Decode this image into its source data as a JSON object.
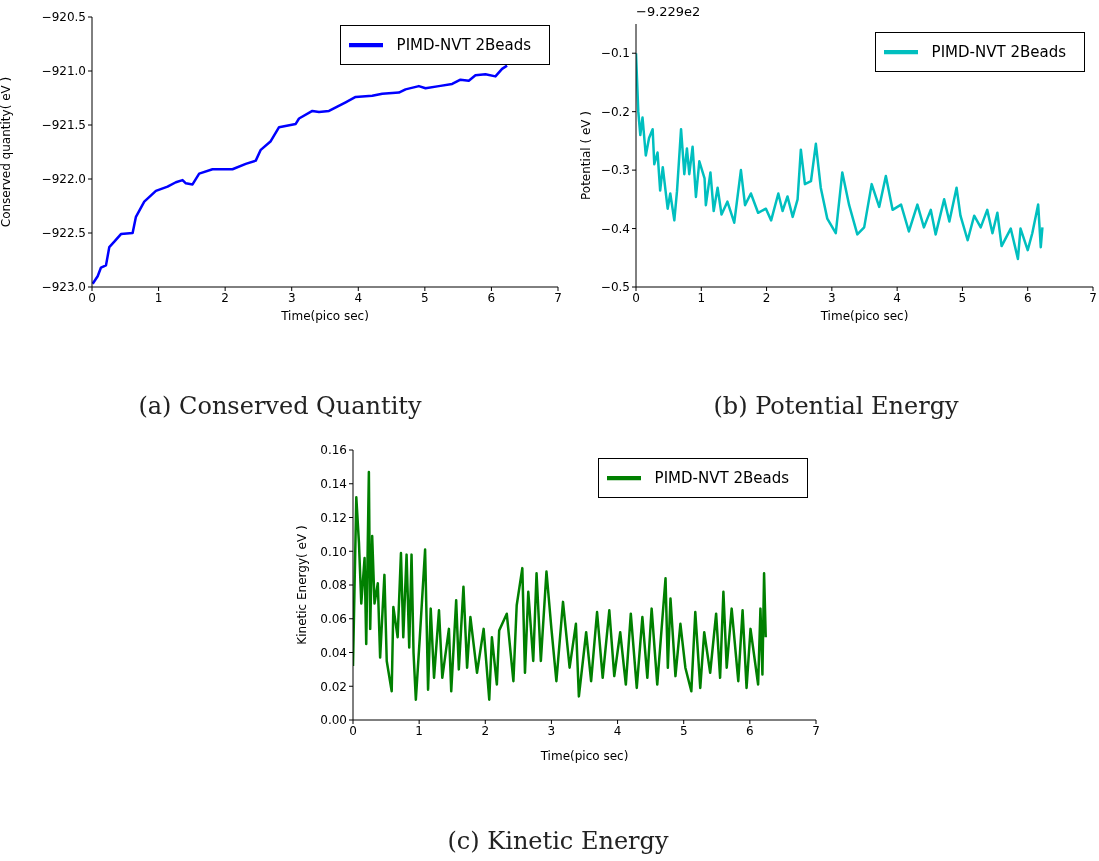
{
  "chart_data": [
    {
      "type": "line",
      "title": "(a) Conserved Quantity",
      "xlabel": "Time(pico sec)",
      "ylabel": "Conserved quantity( eV )",
      "legend": "top right",
      "xlim": [
        0,
        7
      ],
      "xticks": [
        0,
        1,
        2,
        3,
        4,
        5,
        6,
        7
      ],
      "ylim": [
        -923.0,
        -920.5
      ],
      "yticks": [
        {
          "value": -923.0,
          "label": "−923.0"
        },
        {
          "value": -922.5,
          "label": "−922.5"
        },
        {
          "value": -922.0,
          "label": "−922.0"
        },
        {
          "value": -921.5,
          "label": "−921.5"
        },
        {
          "value": -921.0,
          "label": "−921.0"
        },
        {
          "value": -920.5,
          "label": "−920.5"
        }
      ],
      "series": [
        {
          "name": "PIMD-NVT 2Beads",
          "color": "#0000ff",
          "x": [
            0.01,
            0.085,
            0.135,
            0.21,
            0.26,
            0.335,
            0.435,
            0.61,
            0.66,
            0.785,
            0.96,
            1.135,
            1.26,
            1.36,
            1.41,
            1.51,
            1.61,
            1.81,
            2.11,
            2.31,
            2.46,
            2.535,
            2.685,
            2.81,
            3.06,
            3.11,
            3.31,
            3.41,
            3.56,
            3.685,
            3.81,
            3.96,
            4.21,
            4.36,
            4.61,
            4.71,
            4.91,
            5.01,
            5.21,
            5.41,
            5.535,
            5.66,
            5.76,
            5.91,
            6.06,
            6.16,
            6.235
          ],
          "values": [
            -922.97,
            -922.9,
            -922.82,
            -922.8,
            -922.63,
            -922.58,
            -922.51,
            -922.5,
            -922.35,
            -922.21,
            -922.11,
            -922.07,
            -922.03,
            -922.01,
            -922.04,
            -922.05,
            -921.95,
            -921.91,
            -921.91,
            -921.86,
            -921.83,
            -921.73,
            -921.65,
            -921.52,
            -921.49,
            -921.44,
            -921.37,
            -921.38,
            -921.37,
            -921.33,
            -921.29,
            -921.24,
            -921.23,
            -921.21,
            -921.2,
            -921.17,
            -921.14,
            -921.16,
            -921.14,
            -921.12,
            -921.08,
            -921.09,
            -921.04,
            -921.03,
            -921.05,
            -920.98,
            -920.95
          ]
        }
      ]
    },
    {
      "type": "line",
      "title": "(b) Potential Energy",
      "xlabel": "Time(pico sec)",
      "ylabel": "Potential ( eV )",
      "legend": "top right",
      "annotations": [
        "−9.229e2"
      ],
      "xlim": [
        0,
        7
      ],
      "xticks": [
        0,
        1,
        2,
        3,
        4,
        5,
        6,
        7
      ],
      "ylim": [
        -0.5,
        -0.05
      ],
      "yticks": [
        {
          "value": -0.5,
          "label": "−0.5"
        },
        {
          "value": -0.4,
          "label": "−0.4"
        },
        {
          "value": -0.3,
          "label": "−0.3"
        },
        {
          "value": -0.2,
          "label": "−0.2"
        },
        {
          "value": -0.1,
          "label": "−0.1"
        }
      ],
      "series": [
        {
          "name": "PIMD-NVT 2Beads",
          "color": "#00bfbf",
          "x": [
            0,
            0.035,
            0.066,
            0.1,
            0.15,
            0.2,
            0.255,
            0.28,
            0.33,
            0.37,
            0.41,
            0.485,
            0.525,
            0.587,
            0.628,
            0.69,
            0.74,
            0.78,
            0.816,
            0.867,
            0.918,
            0.97,
            1.05,
            1.07,
            1.14,
            1.19,
            1.25,
            1.31,
            1.4,
            1.505,
            1.607,
            1.67,
            1.76,
            1.87,
            1.99,
            2.07,
            2.18,
            2.245,
            2.32,
            2.4,
            2.475,
            2.525,
            2.587,
            2.68,
            2.755,
            2.83,
            2.93,
            3.06,
            3.16,
            3.265,
            3.39,
            3.495,
            3.61,
            3.725,
            3.827,
            3.93,
            4.06,
            4.18,
            4.31,
            4.41,
            4.515,
            4.59,
            4.72,
            4.8,
            4.91,
            4.97,
            5.08,
            5.18,
            5.28,
            5.38,
            5.46,
            5.535,
            5.6,
            5.74,
            5.85,
            5.89,
            6.0,
            6.07,
            6.16,
            6.2,
            6.225
          ],
          "values": [
            -0.1,
            -0.2,
            -0.24,
            -0.21,
            -0.275,
            -0.245,
            -0.23,
            -0.29,
            -0.27,
            -0.335,
            -0.295,
            -0.366,
            -0.34,
            -0.386,
            -0.336,
            -0.23,
            -0.307,
            -0.263,
            -0.307,
            -0.26,
            -0.346,
            -0.285,
            -0.314,
            -0.36,
            -0.304,
            -0.37,
            -0.33,
            -0.376,
            -0.354,
            -0.39,
            -0.3,
            -0.36,
            -0.34,
            -0.373,
            -0.366,
            -0.386,
            -0.34,
            -0.37,
            -0.345,
            -0.38,
            -0.35,
            -0.265,
            -0.324,
            -0.319,
            -0.255,
            -0.33,
            -0.383,
            -0.408,
            -0.304,
            -0.36,
            -0.41,
            -0.398,
            -0.324,
            -0.363,
            -0.31,
            -0.368,
            -0.359,
            -0.405,
            -0.359,
            -0.398,
            -0.368,
            -0.41,
            -0.35,
            -0.388,
            -0.33,
            -0.378,
            -0.42,
            -0.378,
            -0.398,
            -0.368,
            -0.408,
            -0.373,
            -0.43,
            -0.4,
            -0.452,
            -0.4,
            -0.437,
            -0.408,
            -0.359,
            -0.432,
            -0.398
          ]
        }
      ]
    },
    {
      "type": "line",
      "title": "(c) Kinetic Energy",
      "xlabel": "Time(pico sec)",
      "ylabel": "Kinetic Energy( eV )",
      "legend": "top right",
      "xlim": [
        0,
        7
      ],
      "xticks": [
        0,
        1,
        2,
        3,
        4,
        5,
        6,
        7
      ],
      "ylim": [
        0,
        0.16
      ],
      "yticks": [
        {
          "value": 0,
          "label": "0.00"
        },
        {
          "value": 0.02,
          "label": "0.02"
        },
        {
          "value": 0.04,
          "label": "0.04"
        },
        {
          "value": 0.06,
          "label": "0.06"
        },
        {
          "value": 0.08,
          "label": "0.08"
        },
        {
          "value": 0.1,
          "label": "0.10"
        },
        {
          "value": 0.12,
          "label": "0.12"
        },
        {
          "value": 0.14,
          "label": "0.14"
        },
        {
          "value": 0.16,
          "label": "0.16"
        }
      ],
      "series": [
        {
          "name": "PIMD-NVT 2Beads",
          "color": "#008000",
          "x": [
            0,
            0.05,
            0.09,
            0.125,
            0.175,
            0.2,
            0.24,
            0.26,
            0.29,
            0.325,
            0.375,
            0.41,
            0.475,
            0.51,
            0.585,
            0.61,
            0.675,
            0.725,
            0.76,
            0.81,
            0.85,
            0.885,
            0.915,
            0.95,
            1.01,
            1.09,
            1.135,
            1.175,
            1.225,
            1.3,
            1.35,
            1.45,
            1.485,
            1.56,
            1.6,
            1.67,
            1.725,
            1.775,
            1.875,
            1.975,
            2.06,
            2.1,
            2.175,
            2.21,
            2.325,
            2.425,
            2.475,
            2.56,
            2.6,
            2.65,
            2.725,
            2.775,
            2.84,
            2.925,
            3.0,
            3.075,
            3.175,
            3.275,
            3.37,
            3.415,
            3.525,
            3.6,
            3.69,
            3.775,
            3.875,
            3.95,
            4.04,
            4.125,
            4.2,
            4.29,
            4.375,
            4.45,
            4.515,
            4.6,
            4.725,
            4.76,
            4.8,
            4.875,
            4.95,
            5.025,
            5.115,
            5.175,
            5.25,
            5.31,
            5.4,
            5.49,
            5.55,
            5.6,
            5.65,
            5.725,
            5.825,
            5.89,
            5.95,
            6.01,
            6.125,
            6.16,
            6.19,
            6.215,
            6.24
          ],
          "values": [
            0.032,
            0.132,
            0.105,
            0.069,
            0.096,
            0.045,
            0.147,
            0.054,
            0.109,
            0.069,
            0.081,
            0.037,
            0.086,
            0.035,
            0.017,
            0.067,
            0.049,
            0.099,
            0.049,
            0.098,
            0.043,
            0.098,
            0.04,
            0.012,
            0.049,
            0.101,
            0.018,
            0.066,
            0.025,
            0.065,
            0.025,
            0.054,
            0.017,
            0.071,
            0.03,
            0.079,
            0.031,
            0.061,
            0.028,
            0.054,
            0.012,
            0.049,
            0.021,
            0.053,
            0.063,
            0.023,
            0.068,
            0.09,
            0.028,
            0.076,
            0.035,
            0.087,
            0.035,
            0.088,
            0.054,
            0.023,
            0.07,
            0.031,
            0.057,
            0.014,
            0.052,
            0.023,
            0.064,
            0.025,
            0.065,
            0.026,
            0.052,
            0.021,
            0.063,
            0.019,
            0.061,
            0.025,
            0.066,
            0.021,
            0.084,
            0.031,
            0.072,
            0.026,
            0.057,
            0.031,
            0.017,
            0.064,
            0.019,
            0.052,
            0.028,
            0.063,
            0.025,
            0.076,
            0.031,
            0.066,
            0.023,
            0.065,
            0.019,
            0.054,
            0.021,
            0.066,
            0.027,
            0.087,
            0.049
          ]
        }
      ]
    }
  ]
}
